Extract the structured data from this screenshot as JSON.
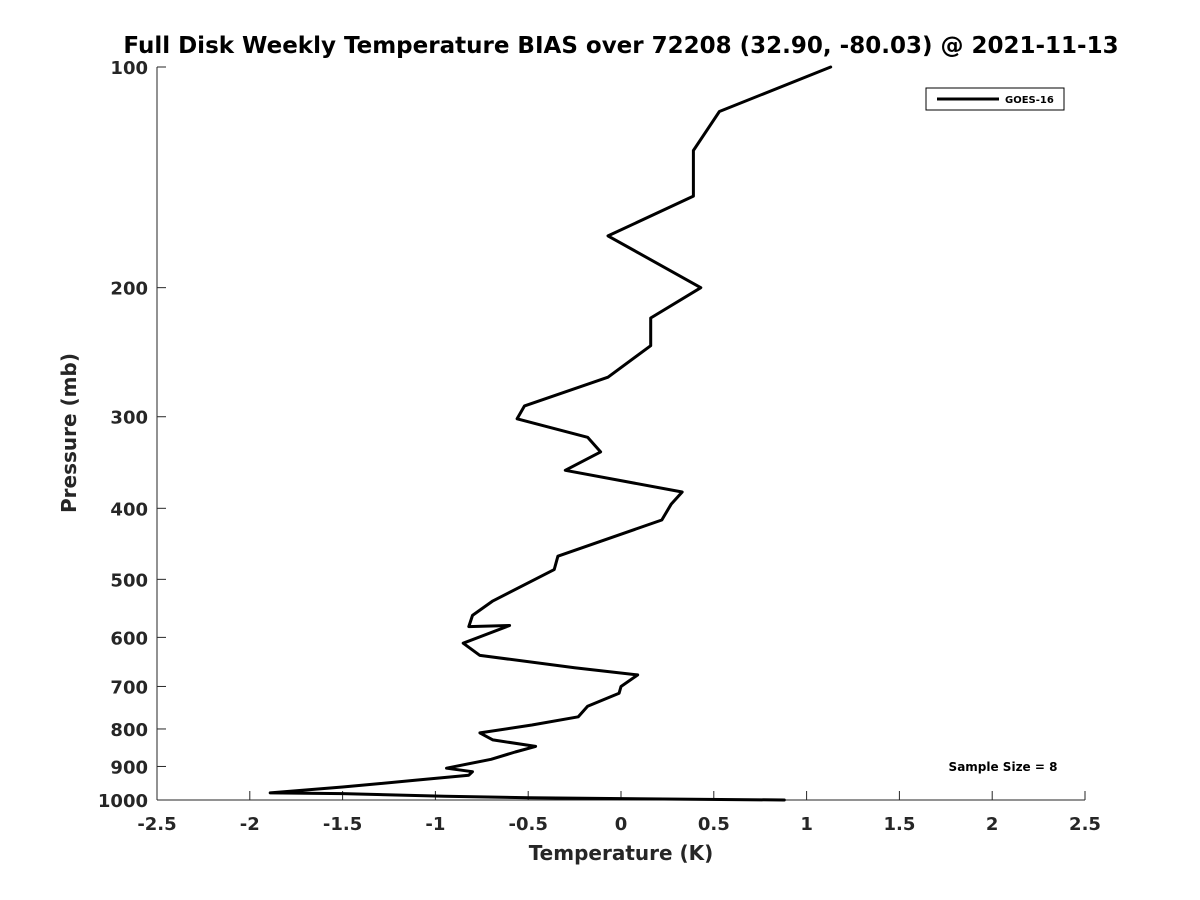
{
  "chart_data": {
    "type": "line",
    "title": "Full Disk Weekly Temperature BIAS over 72208 (32.90, -80.03) @ 2021-11-13",
    "xlabel": "Temperature (K)",
    "ylabel": "Pressure (mb)",
    "xlim": [
      -2.5,
      2.5
    ],
    "ylim": [
      100,
      1000
    ],
    "y_scale": "log",
    "y_reversed": true,
    "x_ticks": [
      -2.5,
      -2,
      -1.5,
      -1,
      -0.5,
      0,
      0.5,
      1,
      1.5,
      2,
      2.5
    ],
    "x_tick_labels": [
      "-2.5",
      "-2",
      "-1.5",
      "-1",
      "-0.5",
      "0",
      "0.5",
      "1",
      "1.5",
      "2",
      "2.5"
    ],
    "y_ticks": [
      100,
      200,
      300,
      400,
      500,
      600,
      700,
      800,
      900,
      1000
    ],
    "y_tick_labels": [
      "100",
      "200",
      "300",
      "400",
      "500",
      "600",
      "700",
      "800",
      "900",
      "1000"
    ],
    "grid": false,
    "legend_position": "top-right",
    "annotation": "Sample Size = 8",
    "line_color": "#000000",
    "series": [
      {
        "name": "GOES-16",
        "x": [
          1.13,
          0.53,
          0.39,
          0.39,
          -0.07,
          0.43,
          0.16,
          0.16,
          -0.07,
          -0.52,
          -0.56,
          -0.18,
          -0.11,
          -0.3,
          0.33,
          0.27,
          0.22,
          -0.34,
          -0.36,
          -0.69,
          -0.8,
          -0.82,
          -0.6,
          -0.85,
          -0.76,
          -0.25,
          0.09,
          0.0,
          -0.01,
          -0.18,
          -0.23,
          -0.48,
          -0.76,
          -0.69,
          -0.46,
          -0.57,
          -0.7,
          -0.94,
          -0.8,
          -0.82,
          -1.11,
          -1.5,
          -1.89,
          -1.5,
          -0.95,
          -0.49,
          0.88
        ],
        "y": [
          100,
          115,
          130,
          150,
          170,
          200,
          220,
          240,
          265,
          290,
          302,
          320,
          335,
          355,
          380,
          395,
          415,
          465,
          485,
          535,
          560,
          580,
          578,
          611,
          635,
          660,
          675,
          700,
          715,
          745,
          770,
          790,
          810,
          828,
          845,
          860,
          880,
          905,
          915,
          925,
          940,
          960,
          978,
          980,
          988,
          993,
          1000
        ]
      }
    ]
  }
}
